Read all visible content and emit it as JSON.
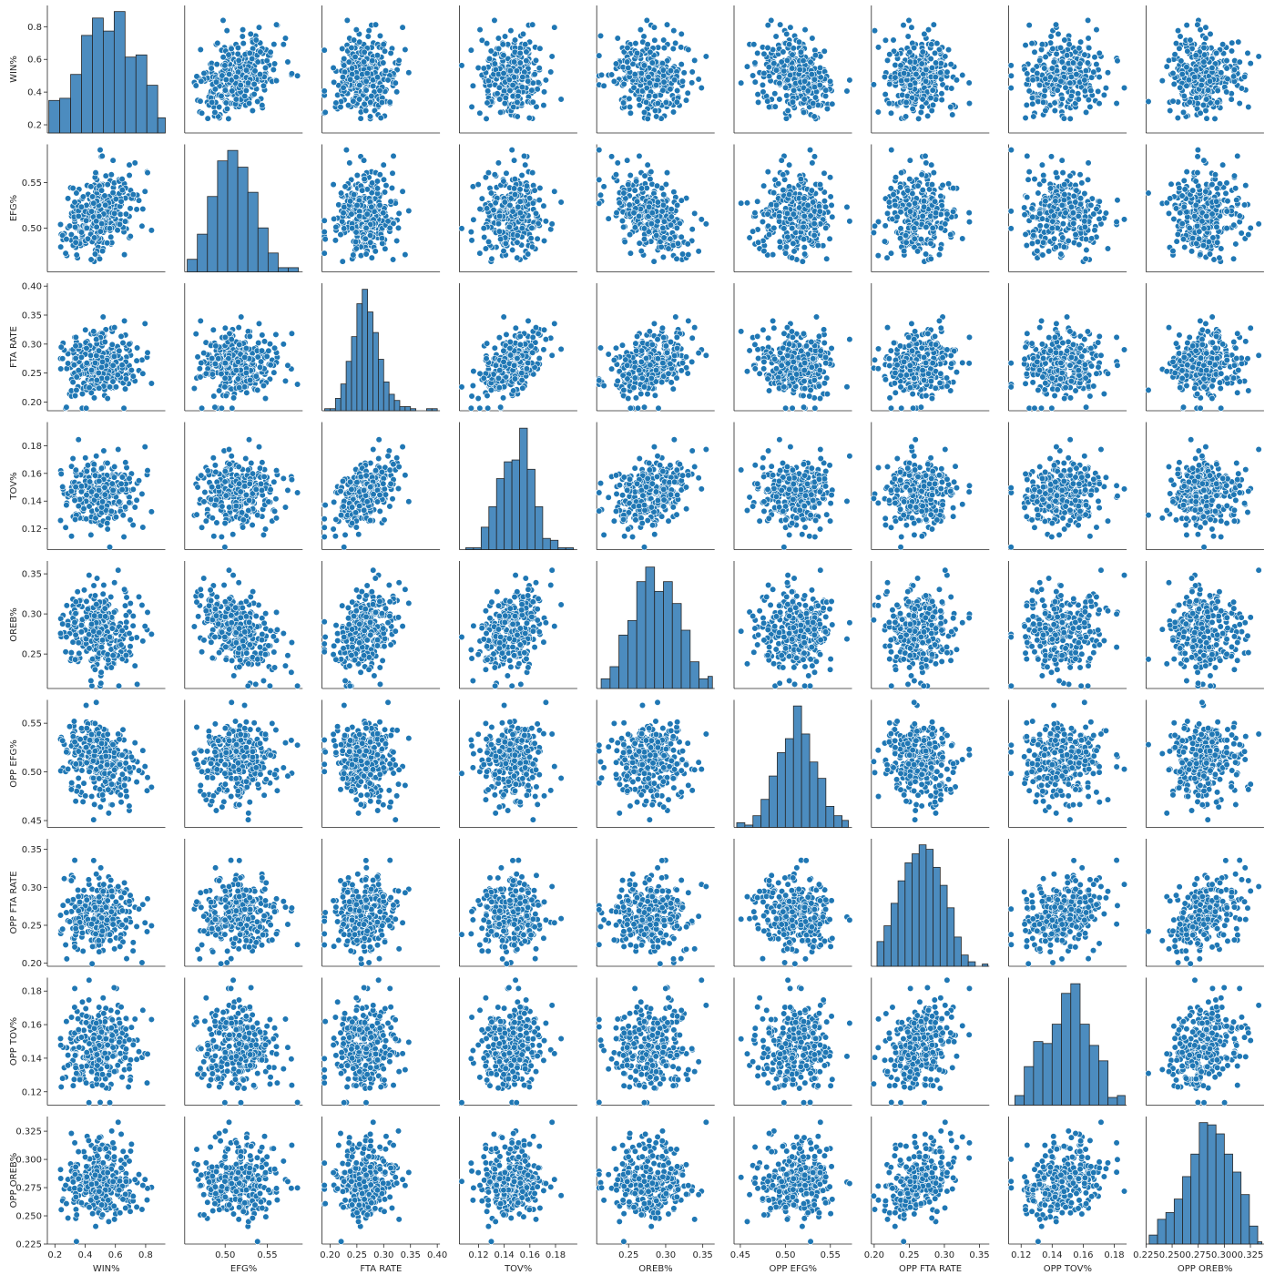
{
  "chart_data": {
    "type": "scatter",
    "layout": "pairplot",
    "point_color": "#1f77b4",
    "hist_color": "#4c8cbf",
    "variables": [
      {
        "name": "WIN%",
        "range": [
          0.15,
          0.93
        ],
        "ticks": [
          "0.2",
          "0.4",
          "0.6",
          "0.8"
        ],
        "hist_bins": [
          0.16,
          0.232,
          0.304,
          0.376,
          0.448,
          0.52,
          0.592,
          0.664,
          0.736,
          0.808,
          0.88,
          0.93
        ],
        "hist_counts": [
          15,
          16,
          27,
          45,
          53,
          47,
          56,
          35,
          36,
          22,
          7,
          1
        ]
      },
      {
        "name": "EFG%",
        "range": [
          0.452,
          0.592
        ],
        "ticks": [
          "0.45",
          "0.50",
          "0.55"
        ],
        "hist_bins": [
          0.455,
          0.467,
          0.479,
          0.491,
          0.503,
          0.515,
          0.527,
          0.539,
          0.551,
          0.563,
          0.575,
          0.587
        ],
        "hist_counts": [
          6,
          18,
          36,
          53,
          58,
          50,
          38,
          21,
          9,
          2,
          2
        ],
        "tick_values": [
          0.45,
          0.5,
          0.55
        ]
      },
      {
        "name": "FTA RATE",
        "range": [
          0.185,
          0.405
        ],
        "ticks": [
          "0.20",
          "0.25",
          "0.30",
          "0.35",
          "0.40"
        ],
        "hist_bins": [
          0.19,
          0.2,
          0.21,
          0.22,
          0.23,
          0.24,
          0.25,
          0.26,
          0.27,
          0.28,
          0.29,
          0.3,
          0.31,
          0.32,
          0.33,
          0.34,
          0.35,
          0.36,
          0.37,
          0.38,
          0.39,
          0.4
        ],
        "hist_counts": [
          1,
          1,
          6,
          13,
          24,
          36,
          52,
          59,
          48,
          38,
          25,
          14,
          8,
          5,
          2,
          2,
          1,
          0,
          0,
          1,
          1
        ],
        "tick_values": [
          0.2,
          0.25,
          0.3,
          0.35,
          0.4
        ]
      },
      {
        "name": "TOV%",
        "range": [
          0.105,
          0.197
        ],
        "ticks": [
          "0.12",
          "0.14",
          "0.16",
          "0.18"
        ],
        "hist_bins": [
          0.11,
          0.116,
          0.122,
          0.128,
          0.134,
          0.14,
          0.146,
          0.152,
          0.158,
          0.164,
          0.17,
          0.176,
          0.182,
          0.188,
          0.194
        ],
        "hist_counts": [
          1,
          1,
          12,
          23,
          38,
          47,
          48,
          65,
          43,
          23,
          6,
          5,
          1,
          1
        ],
        "tick_values": [
          0.12,
          0.14,
          0.16,
          0.18
        ]
      },
      {
        "name": "OREB%",
        "range": [
          0.207,
          0.366
        ],
        "ticks": [
          "0.25",
          "0.30",
          "0.35"
        ],
        "hist_bins": [
          0.213,
          0.225,
          0.237,
          0.249,
          0.261,
          0.273,
          0.285,
          0.297,
          0.309,
          0.321,
          0.333,
          0.345,
          0.357,
          0.363
        ],
        "hist_counts": [
          4,
          9,
          22,
          28,
          44,
          50,
          40,
          44,
          35,
          24,
          11,
          4,
          5
        ],
        "tick_values": [
          0.25,
          0.3,
          0.35
        ]
      },
      {
        "name": "OPP EFG%",
        "range": [
          0.443,
          0.574
        ],
        "ticks": [
          "0.45",
          "0.50",
          "0.55"
        ],
        "hist_bins": [
          0.446,
          0.455,
          0.464,
          0.473,
          0.482,
          0.491,
          0.5,
          0.509,
          0.518,
          0.527,
          0.536,
          0.545,
          0.554,
          0.563,
          0.57
        ],
        "hist_counts": [
          2,
          1,
          5,
          12,
          22,
          32,
          38,
          52,
          40,
          28,
          21,
          9,
          5,
          3
        ],
        "tick_values": [
          0.45,
          0.5,
          0.55
        ]
      },
      {
        "name": "OPP FTA RATE",
        "range": [
          0.196,
          0.364
        ],
        "ticks": [
          "0.20",
          "0.25",
          "0.30",
          "0.35"
        ],
        "hist_bins": [
          0.204,
          0.214,
          0.224,
          0.234,
          0.244,
          0.254,
          0.264,
          0.274,
          0.284,
          0.294,
          0.304,
          0.314,
          0.324,
          0.334,
          0.344,
          0.354,
          0.362
        ],
        "hist_counts": [
          11,
          18,
          28,
          38,
          46,
          50,
          54,
          52,
          44,
          36,
          26,
          13,
          5,
          2,
          0,
          1
        ],
        "tick_values": [
          0.2,
          0.25,
          0.3,
          0.35
        ]
      },
      {
        "name": "OPP TOV%",
        "range": [
          0.112,
          0.188
        ],
        "ticks": [
          "0.12",
          "0.14",
          "0.16",
          "0.18"
        ],
        "hist_bins": [
          0.116,
          0.122,
          0.128,
          0.134,
          0.14,
          0.146,
          0.152,
          0.158,
          0.164,
          0.17,
          0.176,
          0.182,
          0.187
        ],
        "hist_counts": [
          5,
          20,
          33,
          32,
          42,
          58,
          63,
          42,
          31,
          23,
          4,
          5
        ],
        "tick_values": [
          0.12,
          0.14,
          0.16,
          0.18
        ]
      },
      {
        "name": "OPP OREB%",
        "range": [
          0.225,
          0.338
        ],
        "ticks": [
          "0.225",
          "0.250",
          "0.275",
          "0.300",
          "0.325"
        ],
        "hist_bins": [
          0.228,
          0.236,
          0.244,
          0.252,
          0.26,
          0.268,
          0.276,
          0.284,
          0.292,
          0.3,
          0.308,
          0.316,
          0.324,
          0.332,
          0.336
        ],
        "hist_counts": [
          4,
          11,
          14,
          20,
          30,
          40,
          54,
          53,
          49,
          40,
          32,
          22,
          8,
          1
        ],
        "tick_values": [
          0.225,
          0.25,
          0.275,
          0.3,
          0.325
        ]
      }
    ]
  }
}
